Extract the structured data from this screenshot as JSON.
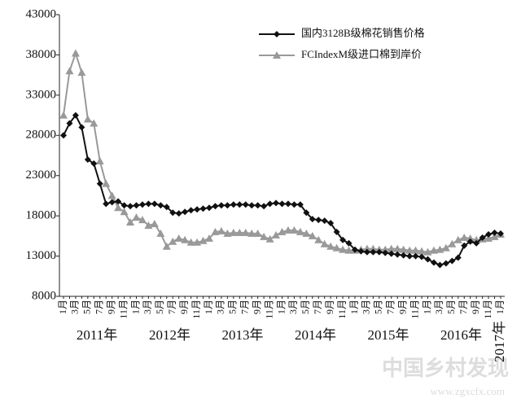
{
  "chart_data": {
    "type": "line",
    "categories": [
      "1月",
      null,
      "3月",
      null,
      "5月",
      null,
      "7月",
      null,
      "9月",
      null,
      "11月",
      null,
      "1月",
      null,
      "3月",
      null,
      "5月",
      null,
      "7月",
      null,
      "9月",
      null,
      "11月",
      null,
      "1月",
      null,
      "3月",
      null,
      "5月",
      null,
      "7月",
      null,
      "9月",
      null,
      "11月",
      null,
      "1月",
      null,
      "3月",
      null,
      "5月",
      null,
      "7月",
      null,
      "9月",
      null,
      "11月",
      null,
      "1月",
      null,
      "3月",
      null,
      "5月",
      null,
      "7月",
      null,
      "9月",
      null,
      "11月",
      null,
      "1月",
      null,
      "3月",
      null,
      "5月",
      null,
      "7月",
      null,
      "9月",
      null,
      "11月",
      null,
      "1月"
    ],
    "years": [
      "2011年",
      "2012年",
      "2013年",
      "2014年",
      "2015年",
      "2016年",
      "2017年"
    ],
    "series": [
      {
        "name": "国内3128B级棉花销售价格",
        "color": "#111111",
        "marker": "diamond",
        "values": [
          28000,
          29500,
          30500,
          29000,
          25000,
          24500,
          22000,
          19500,
          19700,
          19800,
          19300,
          19200,
          19300,
          19400,
          19500,
          19500,
          19300,
          19100,
          18400,
          18300,
          18500,
          18700,
          18800,
          18900,
          19000,
          19200,
          19300,
          19300,
          19400,
          19400,
          19400,
          19300,
          19300,
          19200,
          19500,
          19600,
          19500,
          19500,
          19400,
          19400,
          18400,
          17600,
          17500,
          17400,
          17100,
          16000,
          15000,
          14600,
          13800,
          13600,
          13500,
          13500,
          13500,
          13400,
          13300,
          13200,
          13100,
          13000,
          13000,
          12900,
          12600,
          12200,
          11900,
          12100,
          12400,
          12800,
          14300,
          14800,
          14600,
          15300,
          15700,
          15900,
          15800
        ]
      },
      {
        "name": "FCIndexM级进口棉到岸价",
        "color": "#999999",
        "marker": "triangle",
        "values": [
          30500,
          36000,
          38200,
          35800,
          30000,
          29500,
          24800,
          22000,
          20500,
          19000,
          18500,
          17200,
          17800,
          17500,
          16800,
          17000,
          15800,
          14200,
          14800,
          15200,
          15000,
          14700,
          14700,
          14900,
          15200,
          16000,
          16100,
          15800,
          15900,
          15900,
          15900,
          15800,
          15800,
          15400,
          15100,
          15600,
          16000,
          16200,
          16200,
          16000,
          15800,
          15500,
          15000,
          14500,
          14200,
          14000,
          13800,
          13700,
          13700,
          13800,
          13900,
          13900,
          13800,
          13800,
          13900,
          13900,
          13800,
          13700,
          13700,
          13600,
          13500,
          13700,
          13800,
          14000,
          14500,
          15000,
          15300,
          15200,
          15000,
          15100,
          15200,
          15400,
          15700
        ]
      }
    ],
    "ylim": [
      8000,
      43000
    ],
    "yticks": [
      8000,
      13000,
      18000,
      23000,
      28000,
      33000,
      38000,
      43000
    ],
    "legend": "top-right",
    "watermark": "中国乡村发现",
    "watermark_url": "www.zgxcfx.com"
  }
}
